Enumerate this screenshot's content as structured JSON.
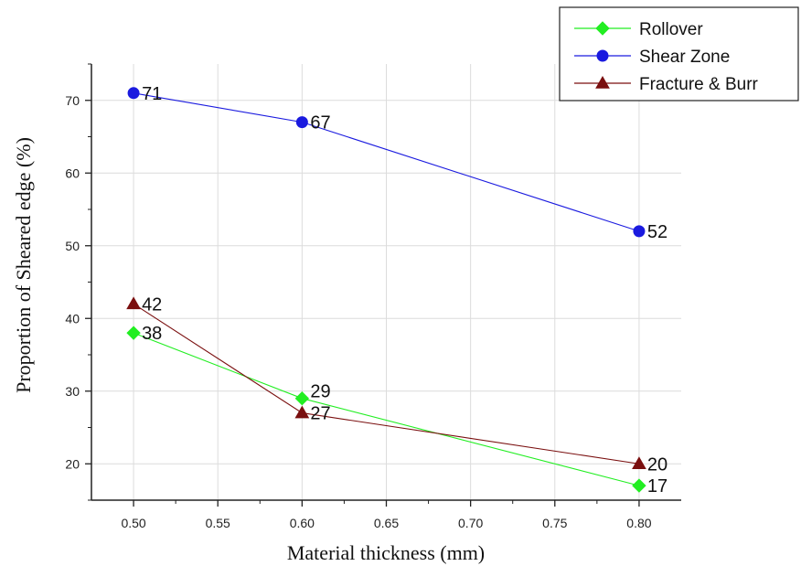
{
  "chart_data": {
    "type": "line",
    "xlabel": "Material thickness (mm)",
    "ylabel": "Proportion of Sheared edge (%)",
    "xlim": [
      0.475,
      0.825
    ],
    "ylim": [
      15,
      75
    ],
    "x_ticks": [
      "0.50",
      "0.55",
      "0.60",
      "0.65",
      "0.70",
      "0.75",
      "0.80"
    ],
    "y_ticks": [
      "20",
      "30",
      "40",
      "50",
      "60",
      "70"
    ],
    "grid": true,
    "legend_position": "top-right",
    "series": [
      {
        "name": "Rollover",
        "marker": "diamond",
        "color": "#22ee22",
        "marker_edge": "#22ee22",
        "x": [
          0.5,
          0.6,
          0.8
        ],
        "values": [
          38,
          29,
          17
        ],
        "labels": [
          "38",
          "29",
          "17"
        ]
      },
      {
        "name": "Shear Zone",
        "marker": "circle",
        "color": "#1a1adf",
        "marker_edge": "#1a1adf",
        "x": [
          0.5,
          0.6,
          0.8
        ],
        "values": [
          71,
          67,
          52
        ],
        "labels": [
          "71",
          "67",
          "52"
        ]
      },
      {
        "name": "Fracture & Burr",
        "marker": "triangle",
        "color": "#7a0f0f",
        "marker_edge": "#7a0f0f",
        "x": [
          0.5,
          0.6,
          0.8
        ],
        "values": [
          42,
          27,
          20
        ],
        "labels": [
          "42",
          "27",
          "20"
        ]
      }
    ]
  }
}
